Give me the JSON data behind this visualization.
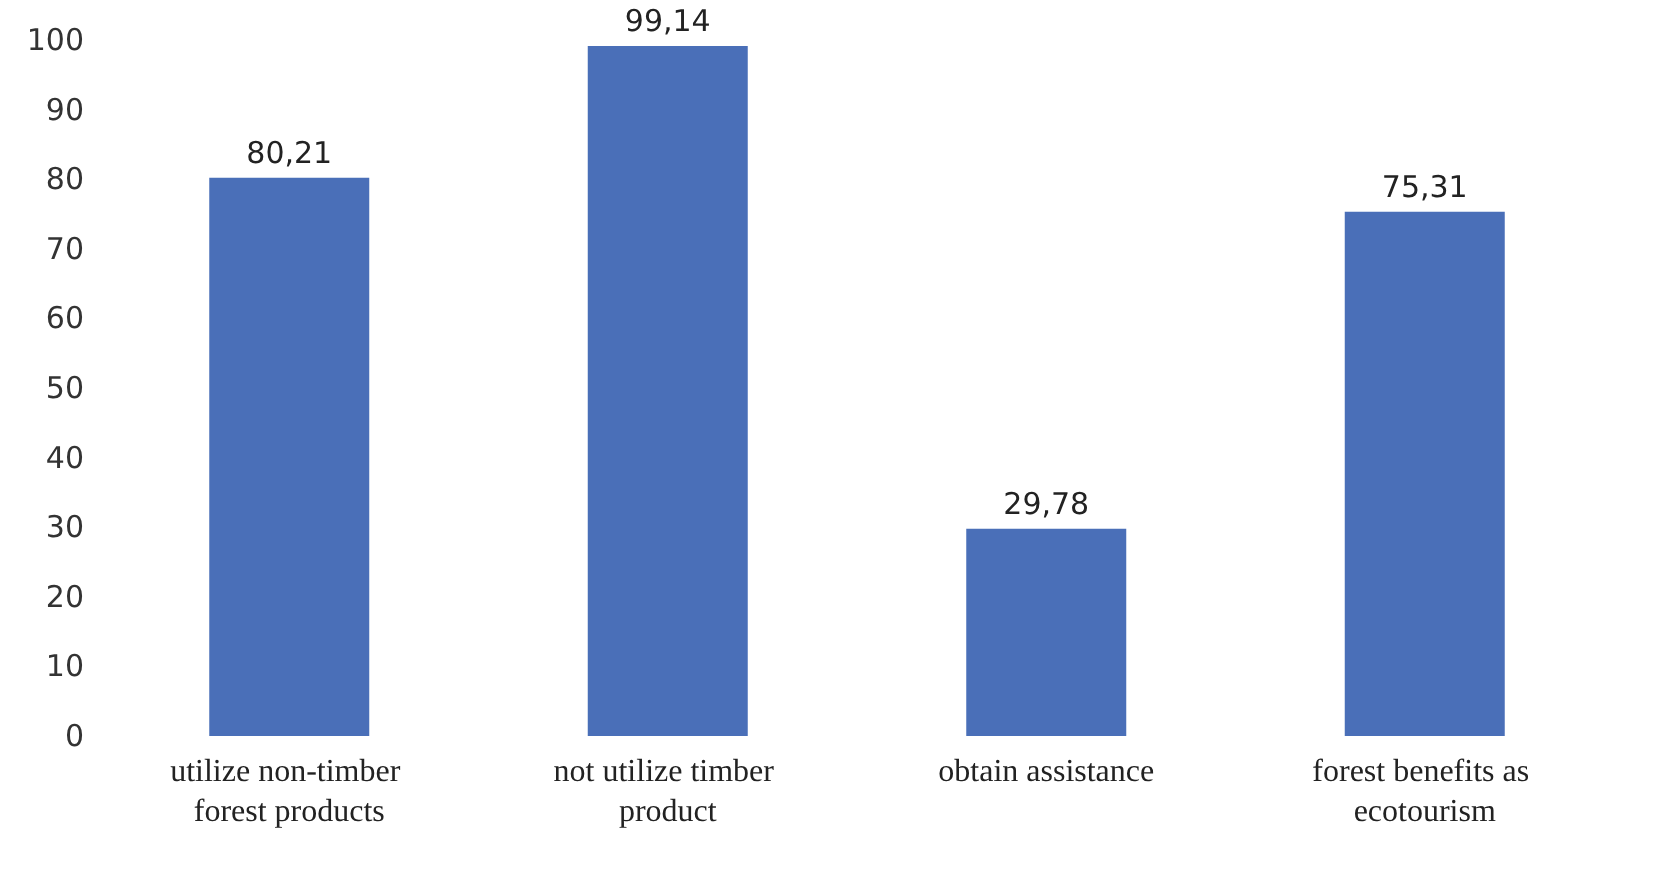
{
  "chart_data": {
    "type": "bar",
    "categories": [
      "utilize non-timber forest products",
      "not utilize timber product",
      "obtain assistance",
      "forest benefits as ecotourism"
    ],
    "values": [
      80.21,
      99.14,
      29.78,
      75.31
    ],
    "value_labels": [
      "80,21",
      "99,14",
      "29,78",
      "75,31"
    ],
    "color": "#4a6fb8",
    "ylim": [
      0,
      100
    ],
    "yticks": [
      0,
      10,
      20,
      30,
      40,
      50,
      60,
      70,
      80,
      90,
      100
    ],
    "grid": false
  }
}
